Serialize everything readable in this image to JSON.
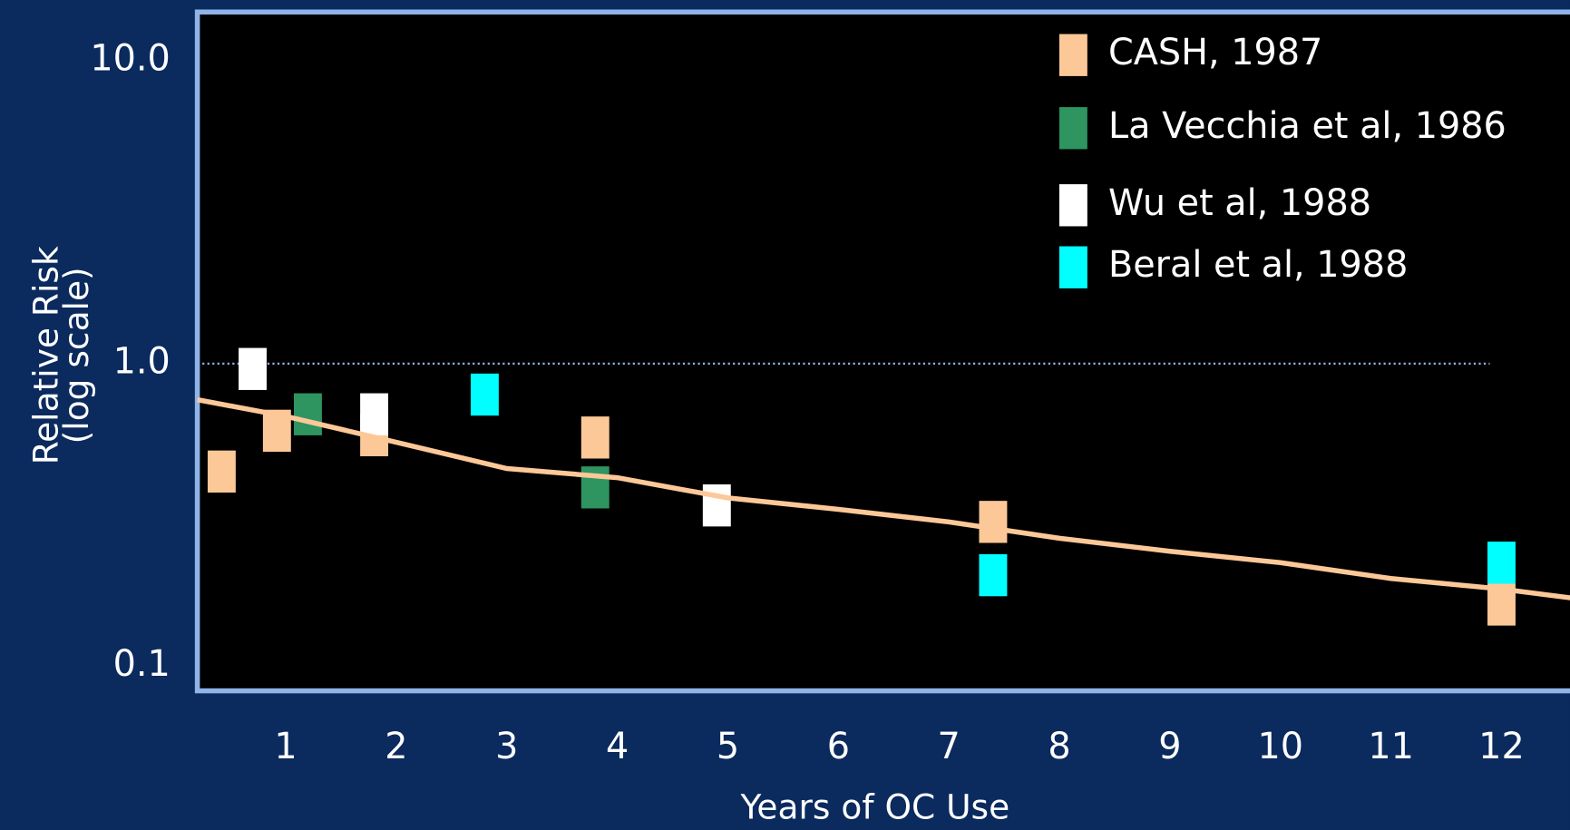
{
  "chart_data": {
    "type": "scatter",
    "xlabel": "Years of OC Use",
    "ylabel": [
      "Relative Risk",
      "(log scale)"
    ],
    "log_y": true,
    "xlim": [
      0.2,
      12.7
    ],
    "xticks": [
      1,
      2,
      3,
      4,
      5,
      6,
      7,
      8,
      9,
      10,
      11,
      12
    ],
    "ylim": [
      0.083,
      14.5
    ],
    "yticks": [
      {
        "value": 10,
        "label": "10.0"
      },
      {
        "value": 1,
        "label": "1.0"
      },
      0.1
    ],
    "reference_line": 1,
    "legend": "upper right",
    "series": [
      {
        "name": "CASH, 1987",
        "color": "#fdc898",
        "x": [
          0.42,
          0.92,
          1.8,
          3.8,
          7.4,
          12
        ],
        "values": [
          0.44,
          0.6,
          0.58,
          0.57,
          0.3,
          0.16
        ]
      },
      {
        "name": "La Vecchia et al,  1986",
        "color": "#2e9460",
        "x": [
          1.2,
          3.8
        ],
        "values": [
          0.68,
          0.39
        ]
      },
      {
        "name": "Wu et al, 1988",
        "color": "#ffffff",
        "x": [
          0.7,
          1.8,
          4.9
        ],
        "values": [
          0.96,
          0.68,
          0.34
        ]
      },
      {
        "name": "Beral et al, 1988",
        "color": "#00ffff",
        "x": [
          2.8,
          7.4,
          12
        ],
        "values": [
          0.79,
          0.2,
          0.22
        ]
      }
    ],
    "trend": {
      "color": "#fdc898",
      "x": [
        0.2,
        1,
        2,
        3,
        4,
        5,
        6,
        7,
        8,
        9,
        10,
        11,
        12,
        12.7
      ],
      "values": [
        0.76,
        0.67,
        0.55,
        0.45,
        0.42,
        0.36,
        0.33,
        0.3,
        0.265,
        0.24,
        0.22,
        0.195,
        0.18,
        0.167
      ]
    }
  }
}
